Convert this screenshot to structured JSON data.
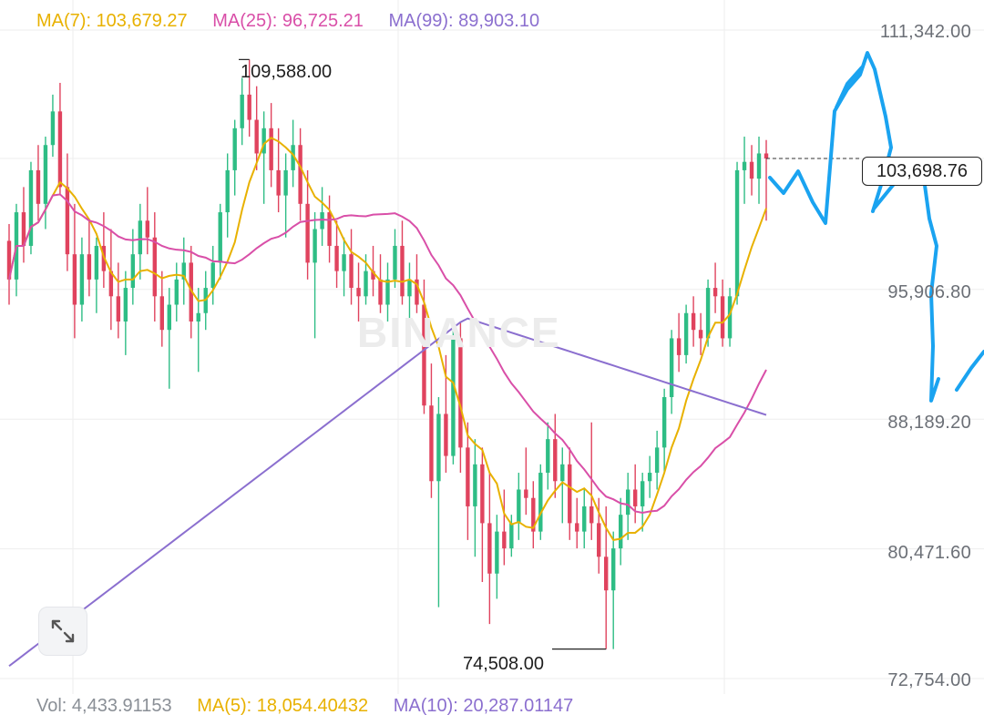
{
  "legend": {
    "ma7": {
      "label": "MA(7): 103,679.27",
      "color": "#e8b100"
    },
    "ma25": {
      "label": "MA(25): 96,725.21",
      "color": "#d94fa8"
    },
    "ma99": {
      "label": "MA(99): 89,903.10",
      "color": "#8b6fcf"
    }
  },
  "volume_legend": {
    "vol": "Vol: 4,433.91153",
    "ma5": "MA(5): 18,054.40432",
    "ma10": "MA(10): 20,287.01147"
  },
  "price_axis": [
    "111,342.00",
    "95,906.80",
    "88,189.20",
    "80,471.60",
    "72,754.00"
  ],
  "current_price": "103,698.76",
  "annotations": {
    "high": "109,588.00",
    "low": "74,508.00"
  },
  "watermark": "BINANCE",
  "icons": {
    "expand": "expand-arrows-icon"
  },
  "colors": {
    "up": "#2ebd85",
    "down": "#e0435e",
    "drawing": "#1aa3f0",
    "grid": "#eeeeee"
  },
  "chart_data": {
    "type": "candlestick",
    "ylim": [
      72754,
      111342
    ],
    "y_ticks": [
      72754,
      80471.6,
      88189.2,
      95906.8,
      111342
    ],
    "current": 103698.76,
    "annotated_high": 109588,
    "annotated_low": 74508,
    "candles": [
      [
        98800,
        99800,
        95000,
        96500
      ],
      [
        96500,
        101000,
        95500,
        100500
      ],
      [
        100500,
        102000,
        97500,
        98500
      ],
      [
        98500,
        103500,
        98000,
        103000
      ],
      [
        103000,
        104500,
        100000,
        101000
      ],
      [
        101000,
        105000,
        99500,
        104500
      ],
      [
        104500,
        107500,
        103800,
        106500
      ],
      [
        106500,
        108200,
        101500,
        102000
      ],
      [
        102000,
        104000,
        97000,
        98000
      ],
      [
        98000,
        101000,
        93000,
        95000
      ],
      [
        95000,
        99000,
        94000,
        98000
      ],
      [
        98000,
        100000,
        95500,
        96500
      ],
      [
        96500,
        99000,
        94500,
        98500
      ],
      [
        98500,
        100500,
        96000,
        97000
      ],
      [
        97000,
        99500,
        93500,
        95500
      ],
      [
        95500,
        97500,
        93000,
        94000
      ],
      [
        94000,
        97000,
        92000,
        96000
      ],
      [
        96000,
        99500,
        95000,
        98000
      ],
      [
        98000,
        101000,
        96500,
        100000
      ],
      [
        100000,
        102000,
        98000,
        99000
      ],
      [
        99000,
        100500,
        94000,
        95500
      ],
      [
        95500,
        97000,
        92500,
        93500
      ],
      [
        93500,
        96000,
        90000,
        95000
      ],
      [
        95000,
        97500,
        94000,
        96500
      ],
      [
        96500,
        99000,
        95000,
        97500
      ],
      [
        97500,
        98500,
        93000,
        94000
      ],
      [
        94000,
        96000,
        91000,
        94500
      ],
      [
        94500,
        97000,
        93500,
        96000
      ],
      [
        96000,
        98500,
        95000,
        97500
      ],
      [
        97500,
        101000,
        96500,
        100500
      ],
      [
        100500,
        104000,
        99000,
        103000
      ],
      [
        103000,
        106000,
        101500,
        105500
      ],
      [
        105500,
        108500,
        104500,
        107500
      ],
      [
        107500,
        109588,
        105000,
        106000
      ],
      [
        106000,
        108000,
        103000,
        104000
      ],
      [
        104000,
        106500,
        101000,
        105500
      ],
      [
        105500,
        107000,
        102000,
        103000
      ],
      [
        103000,
        105500,
        100500,
        101500
      ],
      [
        101500,
        104000,
        99000,
        103000
      ],
      [
        103000,
        106000,
        102000,
        104500
      ],
      [
        104500,
        105500,
        100000,
        101000
      ],
      [
        101000,
        103000,
        96500,
        97500
      ],
      [
        97500,
        100500,
        93000,
        99500
      ],
      [
        99500,
        102000,
        98500,
        100500
      ],
      [
        100500,
        101500,
        97500,
        98500
      ],
      [
        98500,
        100000,
        96000,
        97000
      ],
      [
        97000,
        99000,
        95500,
        98000
      ],
      [
        98000,
        99500,
        95000,
        96000
      ],
      [
        96000,
        97500,
        94000,
        95500
      ],
      [
        95500,
        98000,
        95000,
        97000
      ],
      [
        97000,
        98500,
        95500,
        96500
      ],
      [
        96500,
        98000,
        94500,
        95000
      ],
      [
        95000,
        97500,
        94000,
        96500
      ],
      [
        96500,
        99500,
        96000,
        98500
      ],
      [
        98500,
        100000,
        95000,
        95500
      ],
      [
        95500,
        97500,
        94000,
        96500
      ],
      [
        96500,
        98000,
        94500,
        95000
      ],
      [
        95000,
        96500,
        88500,
        89000
      ],
      [
        89000,
        91500,
        83500,
        84500
      ],
      [
        84500,
        89500,
        77000,
        88500
      ],
      [
        88500,
        92000,
        85000,
        86000
      ],
      [
        86000,
        94000,
        85500,
        93000
      ],
      [
        93000,
        94000,
        85000,
        86500
      ],
      [
        86500,
        88000,
        81000,
        83000
      ],
      [
        83000,
        87000,
        80000,
        85500
      ],
      [
        85500,
        86500,
        78500,
        82000
      ],
      [
        82000,
        85000,
        76000,
        79000
      ],
      [
        79000,
        82500,
        77500,
        81500
      ],
      [
        81500,
        84000,
        79500,
        80500
      ],
      [
        80500,
        82500,
        80000,
        82000
      ],
      [
        82000,
        85000,
        81000,
        84000
      ],
      [
        84000,
        86500,
        82500,
        83500
      ],
      [
        83500,
        84500,
        80500,
        81500
      ],
      [
        81500,
        85500,
        81000,
        85000
      ],
      [
        85000,
        88000,
        84000,
        87000
      ],
      [
        87000,
        88500,
        83500,
        84500
      ],
      [
        84500,
        86500,
        82000,
        85500
      ],
      [
        85500,
        86500,
        81000,
        82000
      ],
      [
        82000,
        83500,
        80500,
        81500
      ],
      [
        81500,
        84000,
        80500,
        83000
      ],
      [
        83000,
        88000,
        81000,
        82000
      ],
      [
        82000,
        83500,
        79000,
        80000
      ],
      [
        80000,
        83000,
        74508,
        78000
      ],
      [
        78000,
        81500,
        74508,
        80500
      ],
      [
        80500,
        83500,
        79500,
        82500
      ],
      [
        82500,
        85000,
        81000,
        84000
      ],
      [
        84000,
        85500,
        82000,
        83000
      ],
      [
        83000,
        85000,
        81500,
        84500
      ],
      [
        84500,
        86000,
        83500,
        85000
      ],
      [
        85000,
        87500,
        84000,
        86500
      ],
      [
        86500,
        90000,
        85000,
        89500
      ],
      [
        89500,
        93500,
        88500,
        93000
      ],
      [
        93000,
        94500,
        91000,
        92000
      ],
      [
        92000,
        95000,
        91500,
        94500
      ],
      [
        94500,
        95500,
        92500,
        93500
      ],
      [
        93500,
        94500,
        92000,
        93000
      ],
      [
        93000,
        96500,
        92500,
        96000
      ],
      [
        96000,
        97500,
        94500,
        95500
      ],
      [
        95500,
        96500,
        92500,
        93000
      ],
      [
        93000,
        96000,
        92500,
        95500
      ],
      [
        95500,
        103500,
        95000,
        103000
      ],
      [
        103000,
        105000,
        101000,
        103500
      ],
      [
        103500,
        104500,
        101500,
        102500
      ],
      [
        102500,
        105000,
        101000,
        104000
      ],
      [
        104000,
        104800,
        100000,
        103698.76
      ]
    ]
  }
}
